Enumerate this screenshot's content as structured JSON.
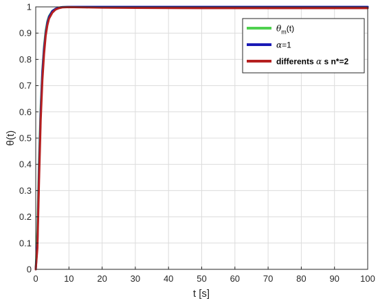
{
  "chart_data": {
    "type": "line",
    "xlabel": "t [s]",
    "ylabel": "θ(t)",
    "xlim": [
      0,
      100
    ],
    "ylim": [
      0,
      1
    ],
    "grid": true,
    "legend_placement": "top-right",
    "x_ticks": [
      0,
      10,
      20,
      30,
      40,
      50,
      60,
      70,
      80,
      90,
      100
    ],
    "y_ticks": [
      0,
      0.1,
      0.2,
      0.3,
      0.4,
      0.5,
      0.6,
      0.7,
      0.8,
      0.9,
      1
    ],
    "legend": [
      {
        "symbol": "θ",
        "subscript": "m",
        "suffix": "(t)",
        "color": "#4fd14f"
      },
      {
        "symbol": "α",
        "subscript": "",
        "suffix": "=1",
        "color": "#1a1ab5"
      },
      {
        "prefix": "differents ",
        "symbol": "α",
        "suffix": " s n*=2",
        "color": "#b52020"
      }
    ],
    "series": [
      {
        "color": "#4fd14f",
        "x": [
          0,
          0.5,
          1,
          1.5,
          2,
          2.5,
          3,
          3.5,
          4,
          5,
          6,
          7,
          8,
          10,
          15,
          20,
          30,
          50,
          100
        ],
        "y": [
          0,
          0.15,
          0.42,
          0.62,
          0.76,
          0.85,
          0.91,
          0.945,
          0.965,
          0.985,
          0.993,
          0.997,
          0.999,
          1,
          1,
          1,
          1,
          1,
          1
        ]
      },
      {
        "color": "#1a1ab5",
        "x": [
          0,
          0.5,
          1,
          1.5,
          2,
          2.5,
          3,
          3.5,
          4,
          5,
          6,
          7,
          8,
          10,
          15,
          20,
          30,
          50,
          100
        ],
        "y": [
          0,
          0.1,
          0.38,
          0.6,
          0.75,
          0.84,
          0.9,
          0.94,
          0.962,
          0.984,
          0.993,
          0.997,
          0.999,
          1,
          1,
          1,
          1,
          1,
          1
        ]
      },
      {
        "color": "#b52020",
        "x": [
          0,
          0.5,
          1,
          1.5,
          2,
          2.5,
          3,
          3.5,
          4,
          5,
          6,
          7,
          8,
          10,
          15,
          20,
          30,
          50,
          100
        ],
        "y": [
          0,
          0.08,
          0.34,
          0.57,
          0.72,
          0.82,
          0.89,
          0.93,
          0.955,
          0.978,
          0.99,
          0.995,
          0.998,
          0.999,
          0.998,
          0.997,
          0.996,
          0.995,
          0.995
        ]
      }
    ]
  }
}
